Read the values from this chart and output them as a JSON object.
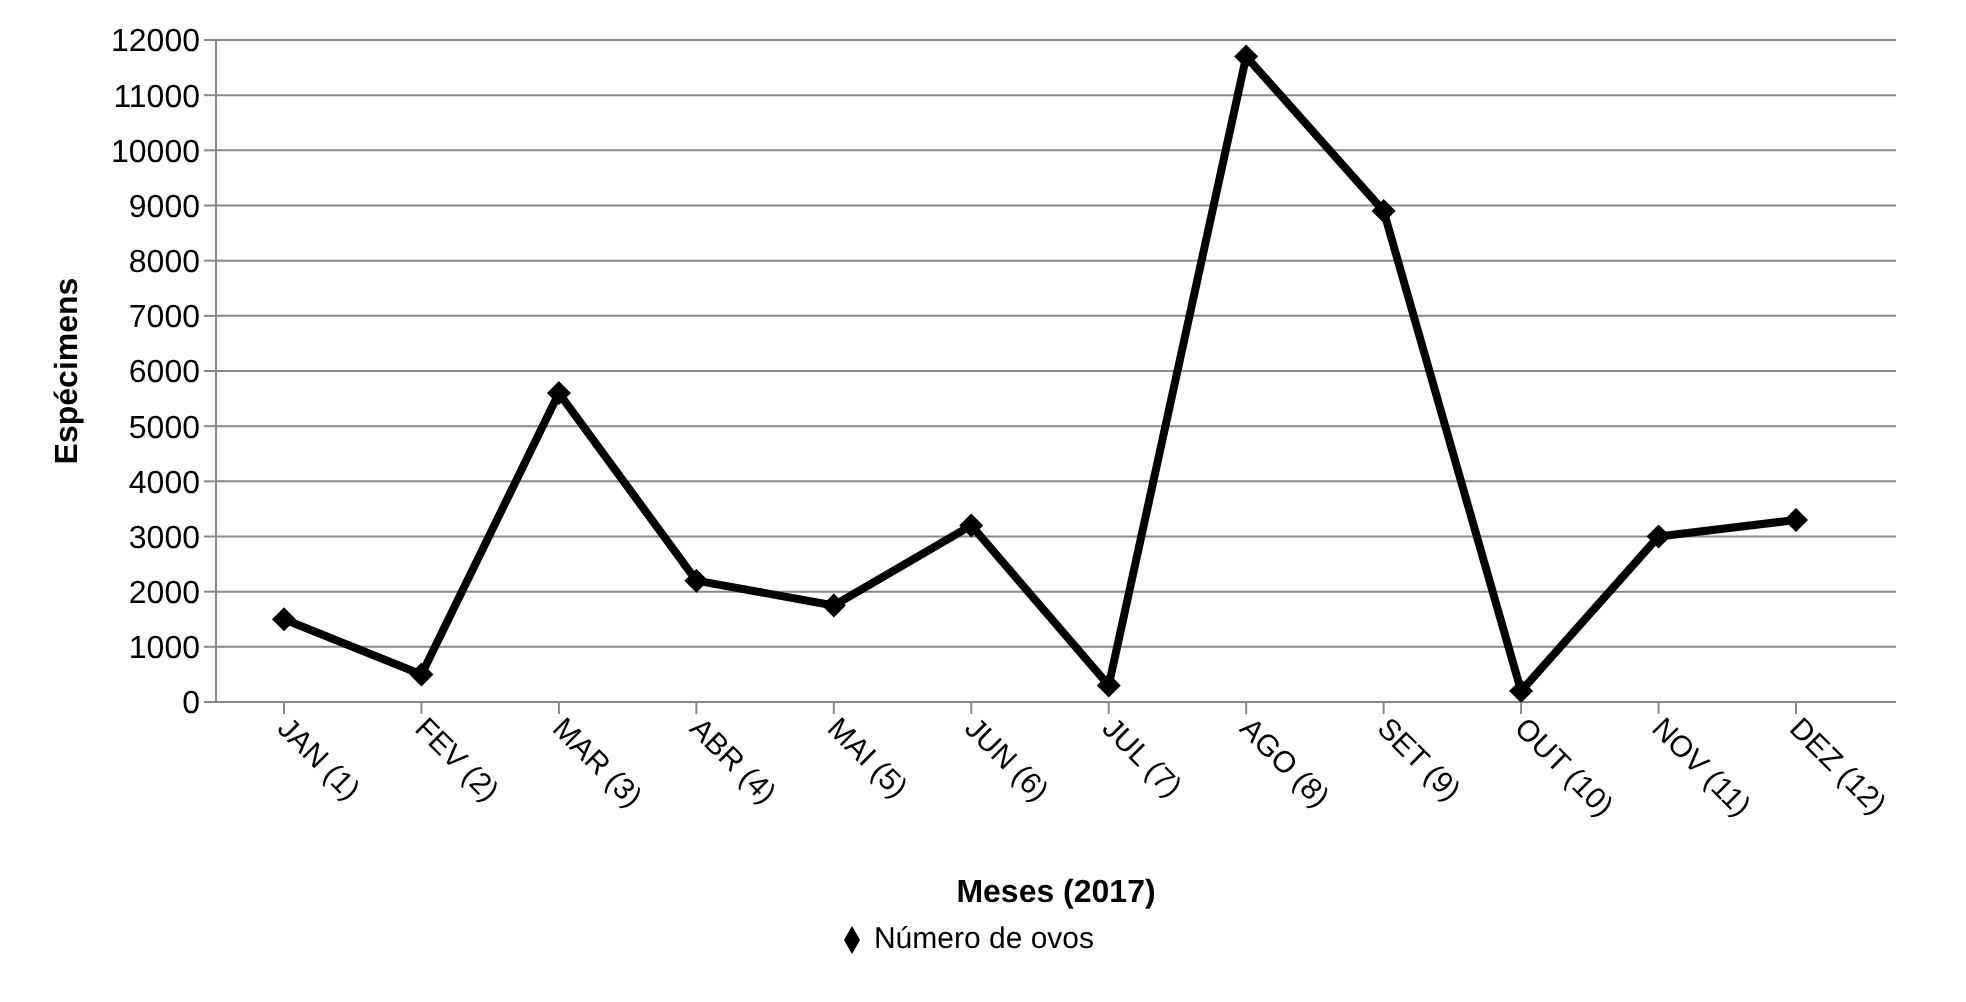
{
  "chart_data": {
    "type": "line",
    "xlabel": "Meses (2017)",
    "ylabel": "Espécimens",
    "categories": [
      "JAN (1)",
      "FEV (2)",
      "MAR (3)",
      "ABR (4)",
      "MAI (5)",
      "JUN (6)",
      "JUL (7)",
      "AGO (8)",
      "SET (9)",
      "OUT (10)",
      "NOV (11)",
      "DEZ (12)"
    ],
    "series": [
      {
        "name": "Número de ovos",
        "color": "#000000",
        "values": [
          1500,
          500,
          5600,
          2200,
          1750,
          3200,
          300,
          11700,
          8900,
          200,
          3000,
          3300
        ]
      }
    ],
    "ylim": [
      0,
      12000
    ],
    "yticks": [
      0,
      1000,
      2000,
      3000,
      4000,
      5000,
      6000,
      7000,
      8000,
      9000,
      10000,
      11000,
      12000
    ],
    "grid": "y",
    "legend": "bottom",
    "marker": "diamond",
    "line_style": "solid"
  }
}
